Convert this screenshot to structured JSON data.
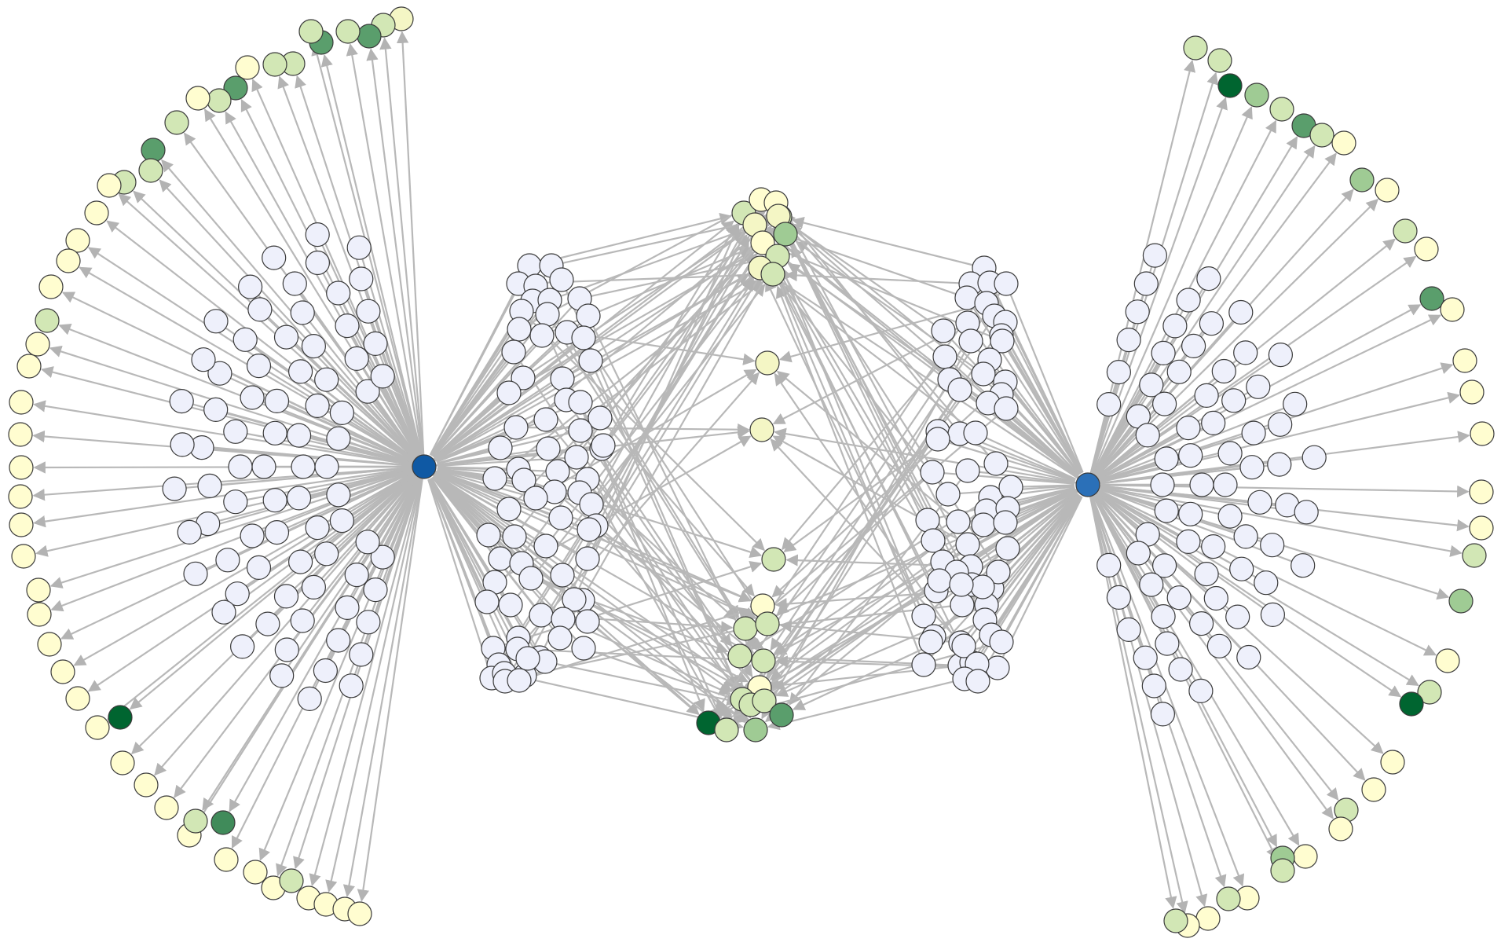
{
  "diagram": {
    "kind": "bipartite network",
    "hubs": [
      {
        "id": "hub-left",
        "color": "#0f59a4"
      },
      {
        "id": "hub-right",
        "color": "#2b70b8"
      }
    ],
    "colors": {
      "edge": "#b8b8b8",
      "node_stroke": "#3a3a3a",
      "gene_node": "#eef0fb",
      "target_scale": [
        "#fffdd0",
        "#f4f6c5",
        "#d2e7b5",
        "#9fcb94",
        "#5a9e6c",
        "#408b5a",
        "#006530"
      ]
    }
  }
}
